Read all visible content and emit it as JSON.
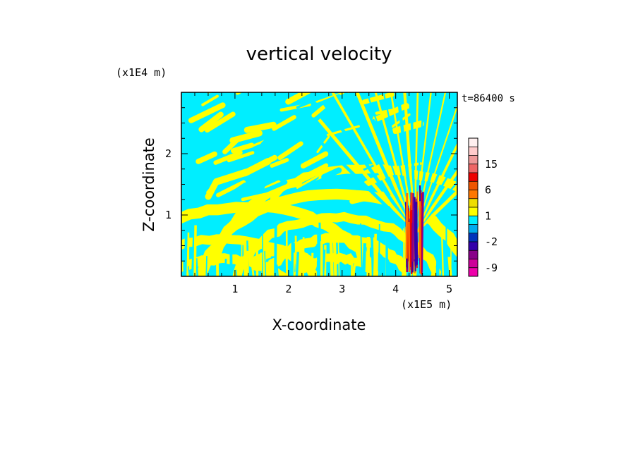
{
  "chart_data": {
    "type": "heatmap",
    "title": "vertical velocity",
    "xlabel": "X-coordinate",
    "ylabel": "Z-coordinate",
    "x_unit": "(x1E5 m)",
    "y_unit": "(x1E4 m)",
    "time_label": "t=86400 s",
    "xlim": [
      0,
      5.15
    ],
    "ylim": [
      0,
      3.0
    ],
    "xticks": [
      1,
      2,
      3,
      4,
      5
    ],
    "yticks": [
      1,
      2
    ],
    "colorbar": {
      "levels": [
        -12,
        -9,
        -6,
        -4,
        -2,
        -1,
        0,
        1,
        2,
        4,
        6,
        9,
        12,
        15,
        18,
        21
      ],
      "tick_labels": [
        {
          "value": -9,
          "label": "-9"
        },
        {
          "value": -2,
          "label": "-2"
        },
        {
          "value": 1,
          "label": "1"
        },
        {
          "value": 6,
          "label": "6"
        },
        {
          "value": 15,
          "label": "15"
        }
      ],
      "colors": [
        "#ee00aa",
        "#cc0099",
        "#880088",
        "#3300aa",
        "#0033bb",
        "#00aaee",
        "#00eeff",
        "#ffff00",
        "#eedd00",
        "#ff7700",
        "#ee5500",
        "#ee0000",
        "#ee6666",
        "#ee9999",
        "#ffcccc",
        "#fff0f0"
      ]
    },
    "field": {
      "dominant_colors": [
        "#00eeff",
        "#ffff00"
      ],
      "plume_x_range": [
        4.2,
        4.5
      ],
      "plume_colors": [
        "#ee0000",
        "#3300aa",
        "#880088",
        "#ff7700"
      ]
    }
  }
}
